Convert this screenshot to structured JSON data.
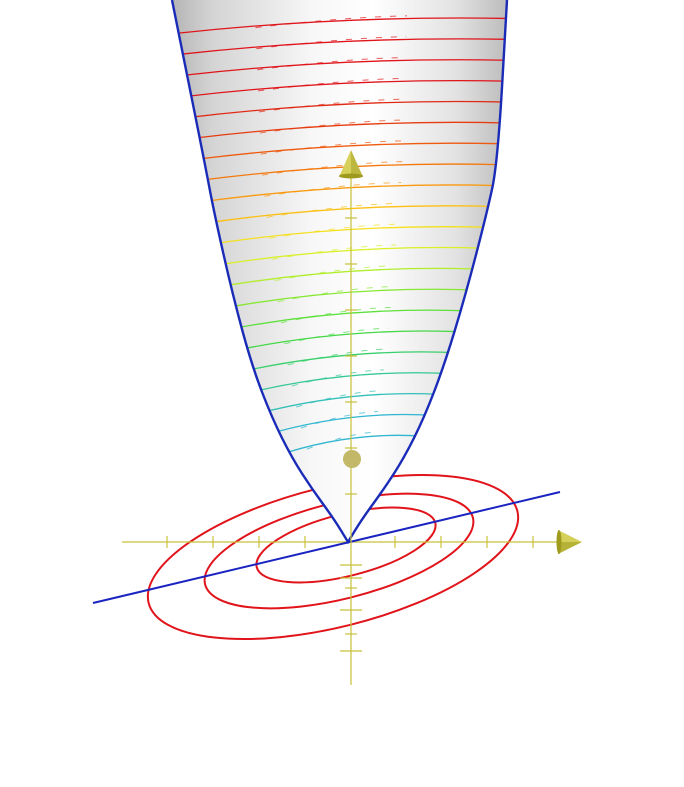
{
  "scene": {
    "surface": "paraboloid",
    "colors": {
      "background": "#ffffff",
      "surface_light": "#ffffff",
      "surface_shade": "#b4b4b4",
      "surface_outline": "#1a2bb8",
      "axis": "#c8c03a",
      "axis_arrow": "#d6cf5a",
      "axis_arrow_shade": "#9d9a1e",
      "point": "#c2b868",
      "base_contours": "#e0141a",
      "diagonal_line": "#1a24c0"
    },
    "level_curve_colors": [
      "#e0141a",
      "#e0141a",
      "#e0141a",
      "#e0141a",
      "#e02a14",
      "#e63c10",
      "#ee5a0e",
      "#f4780c",
      "#f99a10",
      "#fcc014",
      "#f4e01c",
      "#d8f024",
      "#b0ee2a",
      "#86e832",
      "#5ee03c",
      "#44d846",
      "#38d06a",
      "#34c894",
      "#32bfb8",
      "#30b6d0"
    ],
    "base_contour_count": 3,
    "axes": [
      "x",
      "y",
      "z"
    ]
  }
}
